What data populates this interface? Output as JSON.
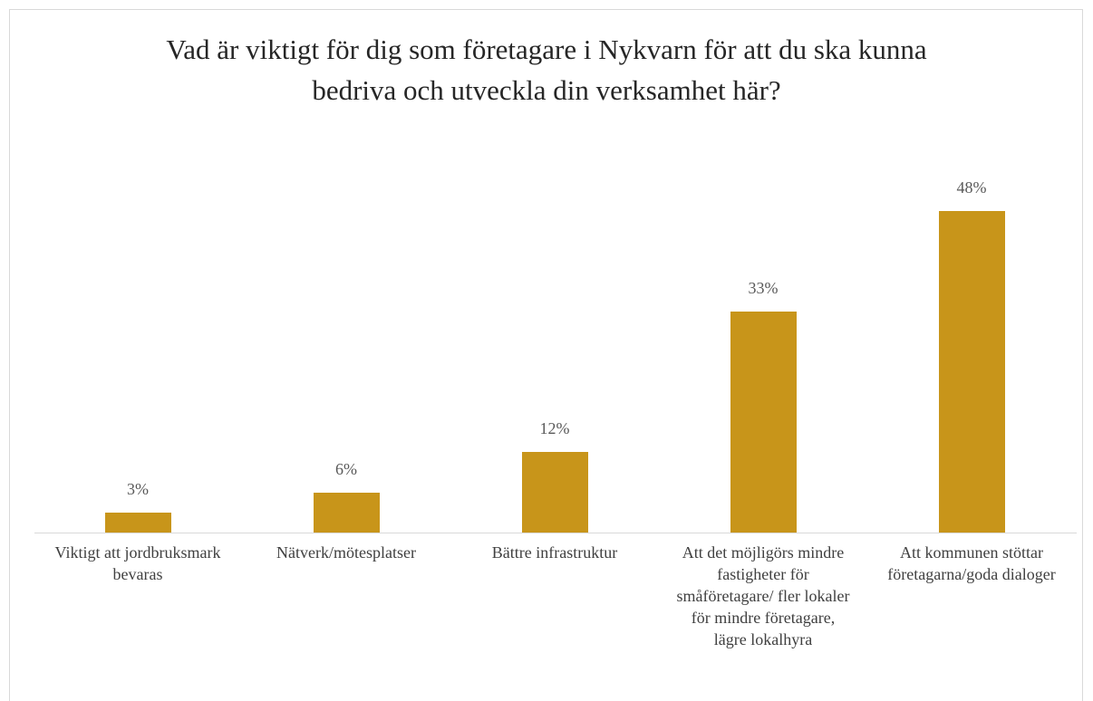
{
  "chart_data": {
    "type": "bar",
    "title": "Vad är viktigt för dig som företagare i Nykvarn för att du ska kunna bedriva och utveckla din verksamhet här?",
    "categories": [
      "Viktigt att jordbruksmark bevaras",
      "Nätverk/mötesplatser",
      "Bättre infrastruktur",
      "Att det möjligörs mindre fastigheter för småföretagare/ fler lokaler för mindre företagare, lägre lokalhyra",
      "Att kommunen stöttar företagarna/goda dialoger"
    ],
    "values": [
      3,
      6,
      12,
      33,
      48
    ],
    "value_labels": [
      "3%",
      "6%",
      "12%",
      "33%",
      "48%"
    ],
    "color": "#c8951a"
  }
}
